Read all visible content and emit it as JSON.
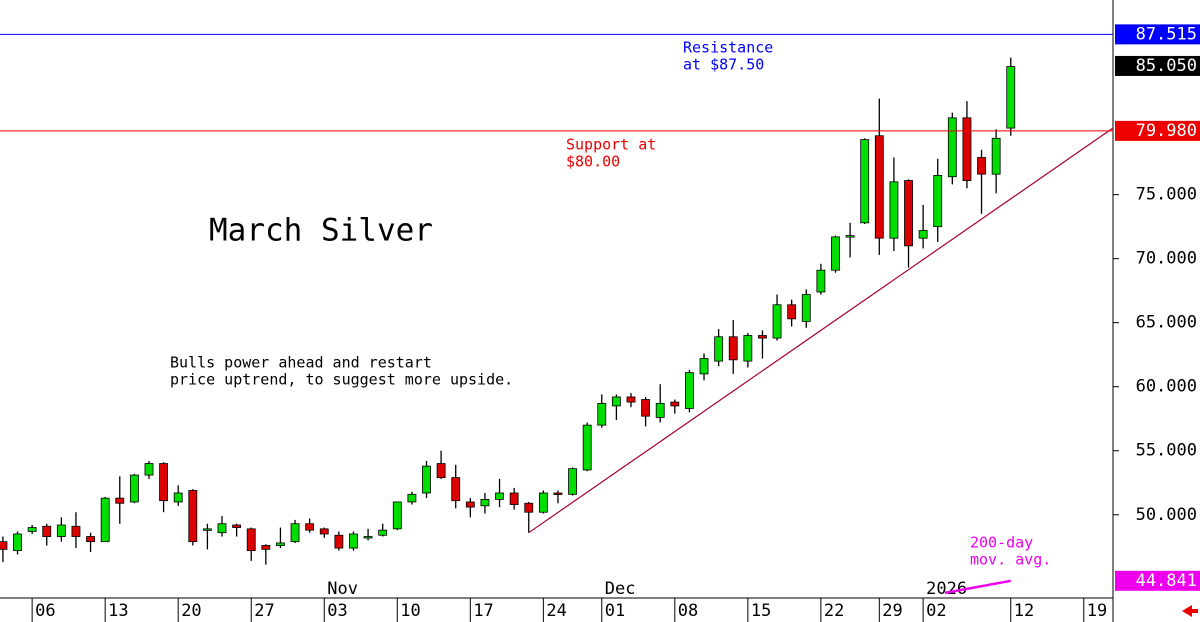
{
  "chart_data": {
    "type": "candlestick",
    "title": "March Silver",
    "subtitle": [
      "Bulls power ahead and restart",
      "price uptrend, to suggest more upside."
    ],
    "annotations": [
      {
        "text": [
          "Resistance",
          "at $87.50"
        ],
        "color": "#0000ff"
      },
      {
        "text": [
          "Support at",
          "$80.00"
        ],
        "color": "#ee0000"
      },
      {
        "text": [
          "200-day",
          "mov. avg."
        ],
        "color": "#ee00ee"
      }
    ],
    "candles": {
      "open": [
        47.9,
        47.2,
        48.7,
        49.1,
        48.3,
        49.1,
        48.3,
        47.9,
        51.3,
        51.0,
        53.1,
        54.0,
        51.0,
        51.9,
        48.8,
        48.6,
        49.2,
        48.9,
        47.6,
        47.6,
        47.9,
        49.3,
        48.9,
        48.4,
        47.4,
        48.3,
        48.4,
        48.9,
        51.0,
        51.7,
        54.0,
        52.9,
        51.0,
        50.7,
        51.2,
        51.7,
        50.9,
        50.2,
        51.7,
        51.6,
        53.5,
        57.0,
        58.5,
        59.2,
        59.0,
        57.6,
        58.8,
        58.3,
        61.0,
        62.0,
        63.9,
        62.0,
        64.0,
        63.8,
        66.4,
        65.1,
        67.4,
        69.1,
        71.8,
        72.8,
        79.6,
        71.6,
        76.1,
        71.6,
        72.5,
        76.4,
        81.0,
        77.9,
        76.6,
        80.2
      ],
      "high": [
        48.3,
        48.7,
        49.2,
        49.3,
        49.8,
        50.2,
        48.6,
        51.4,
        53.0,
        53.2,
        54.2,
        54.1,
        52.3,
        52.0,
        49.3,
        49.9,
        49.3,
        49.0,
        47.7,
        49.0,
        49.6,
        49.7,
        49.0,
        48.7,
        48.7,
        48.9,
        49.3,
        51.0,
        51.8,
        54.2,
        55.0,
        53.9,
        51.3,
        51.7,
        52.8,
        52.1,
        51.0,
        51.9,
        51.9,
        53.7,
        57.2,
        59.4,
        59.4,
        59.5,
        59.2,
        60.2,
        59.0,
        61.3,
        62.6,
        64.5,
        65.2,
        64.2,
        64.4,
        67.2,
        66.8,
        67.6,
        69.6,
        71.8,
        72.8,
        79.4,
        82.5,
        77.9,
        76.2,
        74.2,
        77.8,
        81.4,
        82.3,
        78.5,
        80.1,
        85.7
      ],
      "low": [
        46.3,
        46.9,
        48.5,
        47.6,
        47.9,
        47.4,
        47.1,
        47.9,
        49.3,
        50.9,
        52.8,
        50.2,
        50.7,
        47.6,
        47.3,
        48.3,
        48.3,
        46.4,
        46.1,
        47.4,
        47.8,
        48.6,
        48.2,
        47.2,
        47.2,
        48.0,
        48.3,
        48.8,
        50.8,
        51.3,
        52.8,
        50.5,
        49.8,
        50.1,
        50.6,
        50.4,
        48.6,
        50.1,
        50.9,
        51.5,
        53.4,
        56.8,
        57.4,
        58.4,
        56.9,
        57.2,
        57.9,
        58.0,
        60.5,
        61.6,
        61.0,
        61.5,
        62.2,
        63.6,
        64.7,
        64.6,
        67.2,
        68.9,
        70.1,
        72.7,
        70.3,
        70.6,
        69.3,
        70.8,
        71.3,
        75.8,
        75.5,
        73.5,
        75.1,
        79.6
      ],
      "close": [
        47.3,
        48.5,
        49.0,
        48.3,
        49.2,
        48.3,
        47.9,
        51.3,
        50.9,
        53.1,
        54.0,
        51.1,
        51.7,
        47.9,
        48.9,
        49.3,
        49.0,
        47.2,
        47.3,
        47.8,
        49.3,
        48.8,
        48.5,
        47.4,
        48.5,
        48.3,
        48.8,
        51.0,
        51.6,
        53.8,
        52.9,
        51.1,
        50.6,
        51.2,
        51.7,
        50.8,
        50.2,
        51.7,
        51.6,
        53.6,
        57.0,
        58.7,
        59.2,
        58.8,
        57.7,
        58.7,
        58.5,
        61.1,
        62.2,
        63.9,
        62.1,
        64.0,
        63.8,
        66.4,
        65.3,
        67.2,
        69.1,
        71.7,
        71.8,
        79.3,
        71.6,
        76.0,
        71.0,
        72.2,
        76.5,
        81.0,
        76.1,
        76.6,
        79.4,
        85.0
      ]
    },
    "up_color": "#00dd00",
    "down_color": "#dd0000",
    "trendline": {
      "color": "#aa0033",
      "points": [
        [
          36,
          48.6
        ],
        [
          76,
          80.2
        ]
      ]
    },
    "moving_average": {
      "color": "#ee00ee",
      "points": [
        [
          64.5,
          43.9
        ],
        [
          69,
          44.841
        ]
      ]
    },
    "price_markers": [
      {
        "value": 87.515,
        "label": "87.515",
        "color": "#0000ff",
        "line": true
      },
      {
        "value": 85.05,
        "label": "85.050",
        "color": "#000000",
        "line": false
      },
      {
        "value": 79.98,
        "label": "79.980",
        "color": "#ee0000",
        "line": true
      },
      {
        "value": 44.841,
        "label": "44.841",
        "color": "#ee00ee",
        "line": false
      }
    ],
    "xlim": [
      -0.2,
      76
    ],
    "ylim": [
      43.5,
      90.2
    ],
    "xticks": [
      {
        "value": 2,
        "label": "06"
      },
      {
        "value": 7,
        "label": "13"
      },
      {
        "value": 12,
        "label": "20"
      },
      {
        "value": 17,
        "label": "27"
      },
      {
        "value": 22,
        "label": "03"
      },
      {
        "value": 27,
        "label": "10"
      },
      {
        "value": 32,
        "label": "17"
      },
      {
        "value": 37,
        "label": "24"
      },
      {
        "value": 41,
        "label": "01"
      },
      {
        "value": 46,
        "label": "08"
      },
      {
        "value": 51,
        "label": "15"
      },
      {
        "value": 56,
        "label": "22"
      },
      {
        "value": 60,
        "label": "29"
      },
      {
        "value": 63,
        "label": "02"
      },
      {
        "value": 69,
        "label": "12"
      },
      {
        "value": 74,
        "label": "19"
      }
    ],
    "month_labels": [
      {
        "value": 22,
        "label": "Nov"
      },
      {
        "value": 41,
        "label": "Dec"
      },
      {
        "value": 63,
        "label": "2026"
      }
    ],
    "yticks": [
      {
        "value": 50,
        "label": "50.000"
      },
      {
        "value": 55,
        "label": "55.000"
      },
      {
        "value": 60,
        "label": "60.000"
      },
      {
        "value": 65,
        "label": "65.000"
      },
      {
        "value": 70,
        "label": "70.000"
      },
      {
        "value": 75,
        "label": "75.000"
      }
    ]
  }
}
